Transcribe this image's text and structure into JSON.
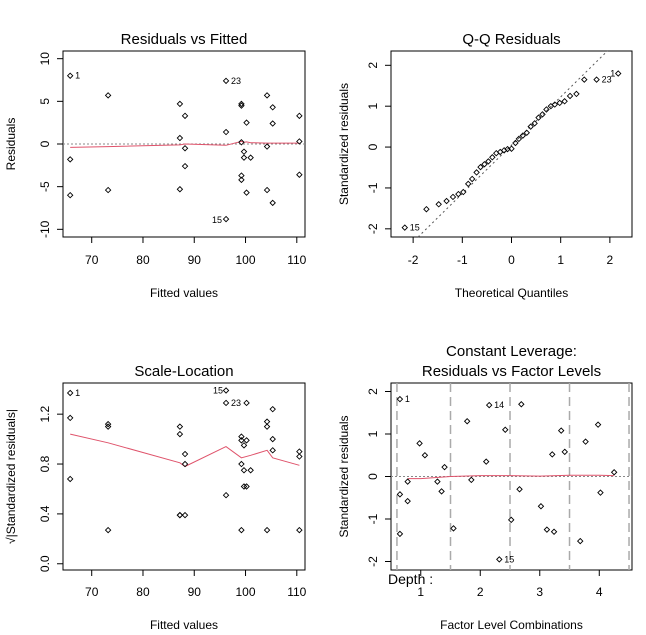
{
  "chart_data": [
    {
      "type": "scatter",
      "title": "Residuals vs Fitted",
      "xlabel": "Fitted values",
      "ylabel": "Residuals",
      "xlim": [
        64.4,
        111.6
      ],
      "ylim": [
        -10.9,
        10.9
      ],
      "xticks": [
        "70",
        "80",
        "90",
        "100",
        "110"
      ],
      "xtick_values": [
        70,
        80,
        90,
        100,
        110
      ],
      "yticks": [
        "-10",
        "-5",
        "0",
        "5",
        "10"
      ],
      "ytick_values": [
        -10,
        -5,
        0,
        5,
        10
      ],
      "reference_line": 0,
      "x": [
        65.8,
        65.8,
        65.8,
        73.2,
        73.2,
        87.2,
        87.2,
        87.2,
        88.2,
        88.2,
        88.2,
        96.2,
        96.2,
        96.2,
        99.2,
        99.2,
        99.2,
        99.2,
        99.2,
        99.7,
        99.7,
        100.2,
        100.2,
        101.0,
        104.2,
        104.2,
        104.2,
        105.3,
        105.3,
        105.3,
        110.5,
        110.5,
        110.5
      ],
      "y": [
        8.0,
        -1.8,
        -6.0,
        5.7,
        -5.4,
        4.7,
        0.7,
        -5.3,
        3.3,
        -0.5,
        -2.6,
        7.4,
        1.4,
        -8.8,
        4.7,
        4.5,
        0.2,
        -3.7,
        -4.2,
        -0.9,
        -1.6,
        2.5,
        -5.7,
        -1.6,
        5.7,
        -0.3,
        -5.4,
        4.3,
        2.4,
        -6.9,
        3.3,
        0.3,
        -3.6
      ],
      "smooth_x": [
        65.8,
        73.2,
        87.2,
        88.2,
        96.2,
        99.2,
        99.7,
        100.2,
        101.0,
        104.2,
        105.3,
        110.5
      ],
      "smooth_y": [
        -0.4,
        -0.3,
        -0.1,
        0.0,
        -0.15,
        0.3,
        0.2,
        0.25,
        0.15,
        0.1,
        0.1,
        0.1
      ],
      "point_labels": [
        {
          "text": "1",
          "x": 65.8,
          "y": 8.0
        },
        {
          "text": "23",
          "x": 96.2,
          "y": 7.4
        },
        {
          "text": "15",
          "x": 96.2,
          "y": -8.8
        }
      ]
    },
    {
      "type": "scatter",
      "title": "Q-Q Residuals",
      "xlabel": "Theoretical Quantiles",
      "ylabel": "Standardized residuals",
      "xlim": [
        -2.45,
        2.45
      ],
      "ylim": [
        -2.2,
        2.35
      ],
      "xticks": [
        "-2",
        "-1",
        "0",
        "1",
        "2"
      ],
      "xtick_values": [
        -2,
        -1,
        0,
        1,
        2
      ],
      "yticks": [
        "-2",
        "-1",
        "0",
        "1",
        "2"
      ],
      "ytick_values": [
        -2,
        -1,
        0,
        1,
        2
      ],
      "reference_line": {
        "from": [
          -1.9,
          -2.2
        ],
        "to": [
          1.95,
          2.35
        ]
      },
      "x": [
        -2.17,
        -1.73,
        -1.48,
        -1.32,
        -1.19,
        -1.08,
        -0.98,
        -0.88,
        -0.8,
        -0.71,
        -0.63,
        -0.55,
        -0.47,
        -0.39,
        -0.31,
        -0.23,
        -0.15,
        -0.08,
        0.0,
        0.08,
        0.15,
        0.23,
        0.31,
        0.39,
        0.47,
        0.55,
        0.63,
        0.71,
        0.8,
        0.88,
        0.98,
        1.08,
        1.19,
        1.32,
        1.48,
        1.73,
        2.17
      ],
      "y": [
        -1.97,
        -1.52,
        -1.4,
        -1.32,
        -1.22,
        -1.15,
        -1.1,
        -0.9,
        -0.78,
        -0.62,
        -0.49,
        -0.42,
        -0.35,
        -0.25,
        -0.15,
        -0.12,
        -0.08,
        -0.05,
        -0.04,
        0.1,
        0.2,
        0.28,
        0.35,
        0.5,
        0.58,
        0.72,
        0.8,
        0.92,
        1.0,
        1.04,
        1.08,
        1.12,
        1.25,
        1.3,
        1.65,
        1.65,
        1.8
      ],
      "point_labels": [
        {
          "text": "1",
          "x": 2.17,
          "y": 1.8
        },
        {
          "text": "23",
          "x": 1.73,
          "y": 1.65
        },
        {
          "text": "15",
          "x": -2.17,
          "y": -1.97
        }
      ]
    },
    {
      "type": "scatter",
      "title": "Scale-Location",
      "xlabel": "Fitted values",
      "ylabel": "√|Standardized residuals|",
      "xlim": [
        64.4,
        111.6
      ],
      "ylim": [
        -0.05,
        1.45
      ],
      "xticks": [
        "70",
        "80",
        "90",
        "100",
        "110"
      ],
      "xtick_values": [
        70,
        80,
        90,
        100,
        110
      ],
      "yticks": [
        "0.0",
        "0.4",
        "0.8",
        "1.2"
      ],
      "ytick_values": [
        0.0,
        0.4,
        0.8,
        1.2
      ],
      "x": [
        65.8,
        65.8,
        65.8,
        73.2,
        73.2,
        73.2,
        87.2,
        87.2,
        87.2,
        87.2,
        88.2,
        88.2,
        88.2,
        96.2,
        96.2,
        96.2,
        99.2,
        99.2,
        99.2,
        99.2,
        99.7,
        99.7,
        99.7,
        100.2,
        100.2,
        100.2,
        101.0,
        104.2,
        104.2,
        104.2,
        105.3,
        105.3,
        105.3,
        110.5,
        110.5,
        110.5
      ],
      "y": [
        1.37,
        1.17,
        0.68,
        1.12,
        1.1,
        0.27,
        1.1,
        1.04,
        0.39,
        0.39,
        0.88,
        0.8,
        0.39,
        1.39,
        1.29,
        0.55,
        1.02,
        0.99,
        0.8,
        0.27,
        0.95,
        0.75,
        0.62,
        1.29,
        0.99,
        0.62,
        0.75,
        1.14,
        1.1,
        0.27,
        1.24,
        1.0,
        0.91,
        0.9,
        0.86,
        0.27
      ],
      "smooth_x": [
        65.8,
        73.2,
        87.2,
        88.2,
        96.2,
        99.2,
        101.0,
        104.2,
        105.3,
        110.5
      ],
      "smooth_y": [
        1.04,
        0.97,
        0.81,
        0.78,
        0.94,
        0.85,
        0.87,
        0.91,
        0.85,
        0.79
      ],
      "point_labels": [
        {
          "text": "1",
          "x": 65.8,
          "y": 1.37
        },
        {
          "text": "15",
          "x": 96.2,
          "y": 1.39
        },
        {
          "text": "23",
          "x": 96.2,
          "y": 1.29
        }
      ]
    },
    {
      "type": "scatter",
      "title": "Constant Leverage:",
      "subtitle": "Residuals vs Factor Levels",
      "xlabel": "Factor Level Combinations",
      "ylabel": "Standardized residuals",
      "factor_label": "Depth :",
      "xlim": [
        0.5,
        4.55
      ],
      "ylim": [
        -2.2,
        2.2
      ],
      "xticks": [
        "1",
        "2",
        "3",
        "4"
      ],
      "xtick_values": [
        1,
        2,
        3,
        4
      ],
      "yticks": [
        "-2",
        "-1",
        "0",
        "1",
        "2"
      ],
      "ytick_values": [
        -2,
        -1,
        0,
        1,
        2
      ],
      "dashed_lines": [
        0.6,
        1.5,
        2.5,
        3.5,
        4.5
      ],
      "x": [
        0.65,
        0.65,
        0.65,
        0.78,
        0.78,
        0.98,
        1.07,
        1.28,
        1.35,
        1.4,
        1.55,
        1.78,
        1.85,
        2.1,
        2.15,
        2.32,
        2.42,
        2.52,
        2.66,
        2.69,
        3.02,
        3.12,
        3.21,
        3.24,
        3.36,
        3.42,
        3.68,
        3.77,
        3.98,
        4.02,
        4.25
      ],
      "y": [
        1.82,
        -0.42,
        -1.35,
        -0.12,
        -0.58,
        0.78,
        0.5,
        -0.12,
        -0.35,
        0.22,
        -1.22,
        1.3,
        -0.08,
        0.35,
        1.68,
        -1.95,
        1.1,
        -1.02,
        -0.3,
        1.7,
        -0.7,
        -1.25,
        0.52,
        -1.3,
        1.08,
        0.58,
        -1.52,
        0.82,
        1.22,
        -0.38,
        0.1
      ],
      "smooth_x": [
        0.78,
        1.0,
        1.5,
        2.0,
        2.5,
        3.0,
        3.5,
        4.0,
        4.25
      ],
      "smooth_y": [
        -0.05,
        -0.05,
        0.0,
        0.02,
        0.02,
        0.01,
        0.03,
        0.03,
        0.02
      ],
      "point_labels": [
        {
          "text": "1",
          "x": 0.65,
          "y": 1.82
        },
        {
          "text": "14",
          "x": 2.15,
          "y": 1.68
        },
        {
          "text": "15",
          "x": 2.32,
          "y": -1.95
        }
      ]
    }
  ]
}
